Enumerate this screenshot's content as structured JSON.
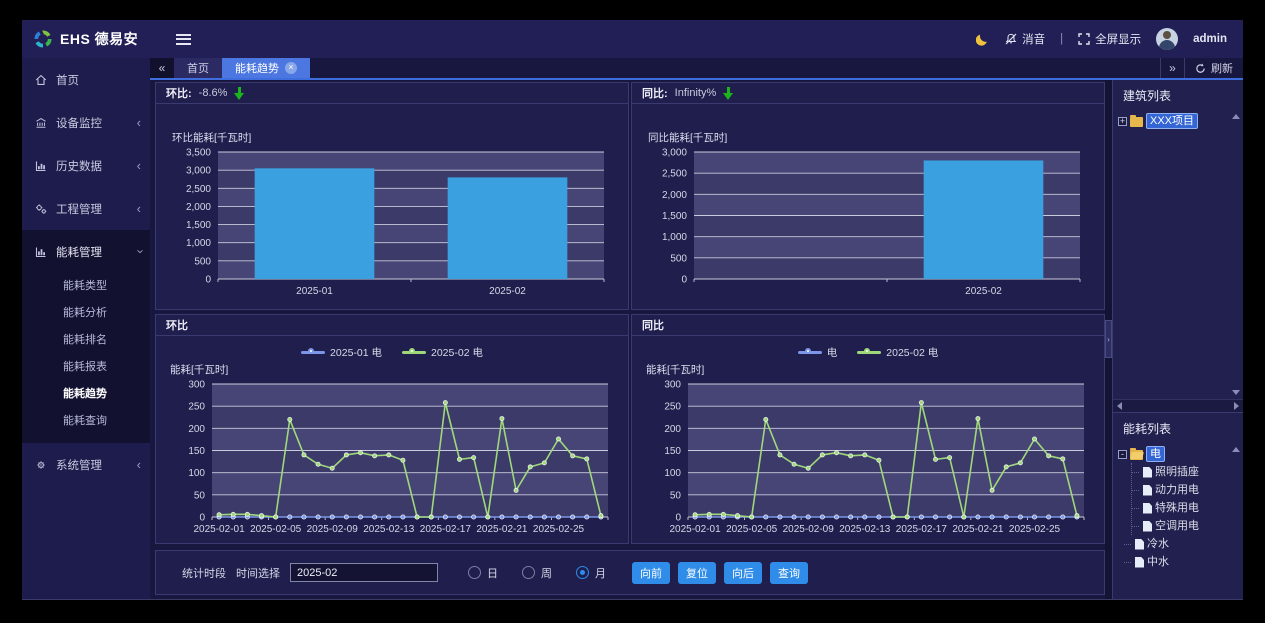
{
  "navbar": {
    "logo_text": "EHS 德易安",
    "mute_label": "消音",
    "divider": "|",
    "fullscreen_label": "全屏显示",
    "username": "admin"
  },
  "sidebar": {
    "items": [
      {
        "key": "home",
        "icon": "home-icon",
        "label": "首页"
      },
      {
        "key": "device-monitoring",
        "icon": "monitor-icon",
        "label": "设备监控",
        "collapsed": true
      },
      {
        "key": "history-data",
        "icon": "history-icon",
        "label": "历史数据",
        "collapsed": true
      },
      {
        "key": "project-management",
        "icon": "project-icon",
        "label": "工程管理",
        "collapsed": true
      },
      {
        "key": "energy-management",
        "icon": "energy-icon",
        "label": "能耗管理",
        "expanded": true,
        "children": [
          {
            "key": "energy-type",
            "label": "能耗类型"
          },
          {
            "key": "energy-analysis",
            "label": "能耗分析"
          },
          {
            "key": "energy-ranking",
            "label": "能耗排名"
          },
          {
            "key": "energy-report",
            "label": "能耗报表"
          },
          {
            "key": "energy-trend",
            "label": "能耗趋势",
            "active": true
          },
          {
            "key": "energy-query",
            "label": "能耗查询"
          }
        ]
      },
      {
        "key": "system-management",
        "icon": "system-icon",
        "label": "系统管理",
        "collapsed": true
      }
    ]
  },
  "tabbar": {
    "tabs": [
      {
        "key": "home",
        "label": "首页"
      },
      {
        "key": "energy-trend",
        "label": "能耗趋势",
        "active": true,
        "closable": true
      }
    ],
    "refresh_label": "刷新"
  },
  "panels": {
    "mom_summary": {
      "title": "环比:",
      "value": "-8.6%",
      "trend": "down"
    },
    "yoy_summary": {
      "title": "同比:",
      "value": "Infinity%",
      "trend": "down"
    },
    "mom_line_title": "环比",
    "yoy_line_title": "同比"
  },
  "controls": {
    "section_label": "统计时段",
    "time_label": "时间选择",
    "time_value": "2025-02",
    "radios": [
      {
        "key": "day",
        "label": "日",
        "checked": false
      },
      {
        "key": "week",
        "label": "周",
        "checked": false
      },
      {
        "key": "month",
        "label": "月",
        "checked": true
      }
    ],
    "buttons": [
      {
        "key": "forward",
        "label": "向前"
      },
      {
        "key": "reset",
        "label": "复位"
      },
      {
        "key": "backward",
        "label": "向后"
      },
      {
        "key": "query",
        "label": "查询"
      }
    ]
  },
  "right_panel": {
    "building_title": "建筑列表",
    "building_tree": [
      {
        "label": "XXX项目",
        "icon": "folder",
        "expander": "+",
        "selected": true
      }
    ],
    "energy_title": "能耗列表",
    "energy_tree": [
      {
        "label": "电",
        "icon": "folder-open",
        "expander": "-",
        "selected": true,
        "children": [
          "照明插座",
          "动力用电",
          "特殊用电",
          "空调用电"
        ]
      },
      {
        "label": "冷水",
        "icon": "file",
        "conn": true
      },
      {
        "label": "中水",
        "icon": "file",
        "conn": true
      }
    ]
  },
  "chart_data": [
    {
      "id": "mom-bar",
      "type": "bar",
      "title": "环比能耗[千瓦时]",
      "categories": [
        "2025-01",
        "2025-02"
      ],
      "values": [
        3050,
        2800
      ],
      "ylim": [
        0,
        3500
      ],
      "ytick": 500,
      "bar_color": "#3aa0df",
      "grid": true
    },
    {
      "id": "yoy-bar",
      "type": "bar",
      "title": "同比能耗[千瓦时]",
      "categories": [
        "",
        "2025-02"
      ],
      "values": [
        null,
        2800
      ],
      "ylim": [
        0,
        3000
      ],
      "ytick": 500,
      "bar_color": "#3aa0df",
      "grid": true
    },
    {
      "id": "mom-line",
      "type": "line",
      "title": "能耗[千瓦时]",
      "x": [
        "2025-02-01",
        "2025-02-02",
        "2025-02-03",
        "2025-02-04",
        "2025-02-05",
        "2025-02-06",
        "2025-02-07",
        "2025-02-08",
        "2025-02-09",
        "2025-02-10",
        "2025-02-11",
        "2025-02-12",
        "2025-02-13",
        "2025-02-14",
        "2025-02-15",
        "2025-02-16",
        "2025-02-17",
        "2025-02-18",
        "2025-02-19",
        "2025-02-20",
        "2025-02-21",
        "2025-02-22",
        "2025-02-23",
        "2025-02-24",
        "2025-02-25",
        "2025-02-26",
        "2025-02-27",
        "2025-02-28"
      ],
      "x_label_indices": [
        0,
        4,
        8,
        12,
        16,
        20,
        24
      ],
      "ylim": [
        0,
        300
      ],
      "ytick": 50,
      "legend_position": "top",
      "series": [
        {
          "name": "2025-01 电",
          "color": "#7b96e8",
          "values": [
            0,
            0,
            0,
            0,
            0,
            0,
            0,
            0,
            0,
            0,
            0,
            0,
            0,
            0,
            0,
            0,
            0,
            0,
            0,
            0,
            0,
            0,
            0,
            0,
            0,
            0,
            0,
            0
          ]
        },
        {
          "name": "2025-02 电",
          "color": "#9fd87b",
          "values": [
            5,
            6,
            6,
            3,
            0,
            220,
            140,
            119,
            110,
            140,
            145,
            138,
            140,
            128,
            0,
            0,
            258,
            130,
            134,
            0,
            222,
            60,
            113,
            122,
            176,
            138,
            131,
            3
          ]
        }
      ]
    },
    {
      "id": "yoy-line",
      "type": "line",
      "title": "能耗[千瓦时]",
      "x": [
        "2025-02-01",
        "2025-02-02",
        "2025-02-03",
        "2025-02-04",
        "2025-02-05",
        "2025-02-06",
        "2025-02-07",
        "2025-02-08",
        "2025-02-09",
        "2025-02-10",
        "2025-02-11",
        "2025-02-12",
        "2025-02-13",
        "2025-02-14",
        "2025-02-15",
        "2025-02-16",
        "2025-02-17",
        "2025-02-18",
        "2025-02-19",
        "2025-02-20",
        "2025-02-21",
        "2025-02-22",
        "2025-02-23",
        "2025-02-24",
        "2025-02-25",
        "2025-02-26",
        "2025-02-27",
        "2025-02-28"
      ],
      "x_label_indices": [
        0,
        4,
        8,
        12,
        16,
        20,
        24
      ],
      "ylim": [
        0,
        300
      ],
      "ytick": 50,
      "legend_position": "top",
      "series": [
        {
          "name": "电",
          "color": "#7b96e8",
          "values": [
            0,
            0,
            0,
            0,
            0,
            0,
            0,
            0,
            0,
            0,
            0,
            0,
            0,
            0,
            0,
            0,
            0,
            0,
            0,
            0,
            0,
            0,
            0,
            0,
            0,
            0,
            0,
            0
          ]
        },
        {
          "name": "2025-02 电",
          "color": "#9fd87b",
          "values": [
            5,
            6,
            6,
            3,
            0,
            220,
            140,
            119,
            110,
            140,
            145,
            138,
            140,
            128,
            0,
            0,
            258,
            130,
            134,
            0,
            222,
            60,
            113,
            122,
            176,
            138,
            131,
            3
          ]
        }
      ]
    }
  ]
}
